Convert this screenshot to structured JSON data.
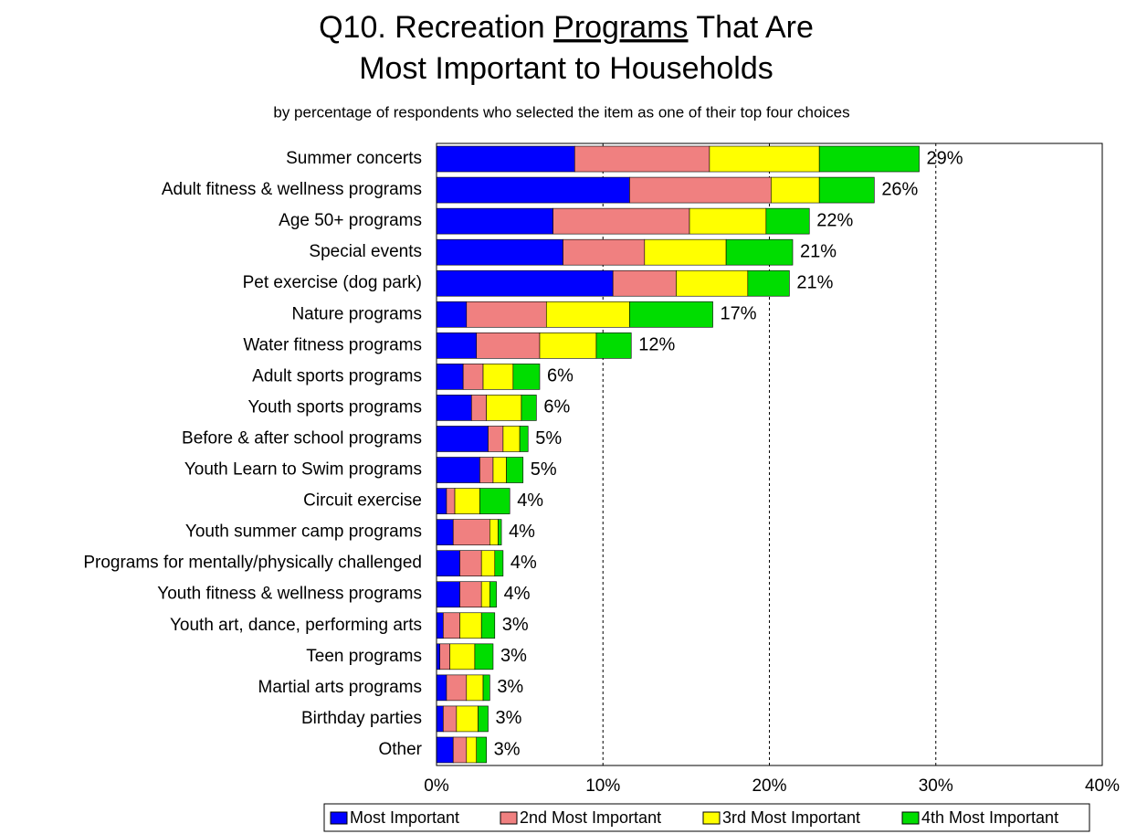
{
  "chart_data": {
    "type": "stacked-bar-horizontal",
    "title": {
      "line1": [
        "Q10. Recreation ",
        "Programs",
        " That Are"
      ],
      "line2": "Most Important to Households"
    },
    "subtitle": "by percentage of respondents who selected the item as one of their top four choices",
    "categories": [
      "Summer concerts",
      "Adult fitness & wellness programs",
      "Age 50+ programs",
      "Special events",
      "Pet exercise (dog park)",
      "Nature programs",
      "Water fitness programs",
      "Adult sports programs",
      "Youth sports programs",
      "Before & after school programs",
      "Youth Learn to Swim programs",
      "Circuit exercise",
      "Youth summer camp programs",
      "Programs for mentally/physically challenged",
      "Youth fitness & wellness programs",
      "Youth art, dance, performing arts",
      "Teen programs",
      "Martial arts programs",
      "Birthday parties",
      "Other"
    ],
    "series": [
      {
        "name": "Most Important",
        "color": "#0000ff",
        "values": [
          8.3,
          11.6,
          7.0,
          7.6,
          10.6,
          1.8,
          2.4,
          1.6,
          2.1,
          3.1,
          2.6,
          0.6,
          1.0,
          1.4,
          1.4,
          0.4,
          0.2,
          0.6,
          0.4,
          1.0
        ]
      },
      {
        "name": "2nd Most Important",
        "color": "#f08080",
        "values": [
          8.1,
          8.5,
          8.2,
          4.9,
          3.8,
          4.8,
          3.8,
          1.2,
          0.9,
          0.9,
          0.8,
          0.5,
          2.2,
          1.3,
          1.3,
          1.0,
          0.6,
          1.2,
          0.8,
          0.8
        ]
      },
      {
        "name": "3rd Most Important",
        "color": "#ffff00",
        "values": [
          6.6,
          2.9,
          4.6,
          4.9,
          4.3,
          5.0,
          3.4,
          1.8,
          2.1,
          1.0,
          0.8,
          1.5,
          0.5,
          0.8,
          0.5,
          1.3,
          1.5,
          1.0,
          1.3,
          0.6
        ]
      },
      {
        "name": "4th Most Important",
        "color": "#00dd00",
        "values": [
          6.0,
          3.3,
          2.6,
          4.0,
          2.5,
          5.0,
          2.1,
          1.6,
          0.9,
          0.5,
          1.0,
          1.8,
          0.2,
          0.5,
          0.4,
          0.8,
          1.1,
          0.4,
          0.6,
          0.6
        ]
      }
    ],
    "total_labels": [
      "29%",
      "26%",
      "22%",
      "21%",
      "21%",
      "17%",
      "12%",
      "6%",
      "6%",
      "5%",
      "5%",
      "4%",
      "4%",
      "4%",
      "4%",
      "3%",
      "3%",
      "3%",
      "3%",
      "3%"
    ],
    "xlim": [
      0,
      40
    ],
    "xticks": [
      {
        "value": 0,
        "label": "0%"
      },
      {
        "value": 10,
        "label": "10%"
      },
      {
        "value": 20,
        "label": "20%"
      },
      {
        "value": 30,
        "label": "30%"
      },
      {
        "value": 40,
        "label": "40%"
      }
    ],
    "grid": true
  }
}
